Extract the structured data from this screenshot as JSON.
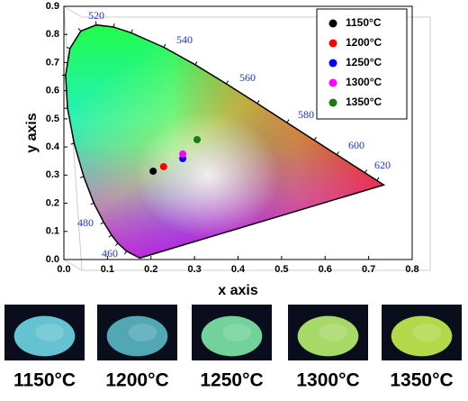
{
  "chart_data": {
    "type": "scatter",
    "xlabel": "x axis",
    "ylabel": "y axis",
    "xlim": [
      0,
      0.8
    ],
    "ylim": [
      0,
      0.9
    ],
    "xticks": [
      {
        "value": 0,
        "label": "0.0"
      },
      0.1,
      0.2,
      0.3,
      0.4,
      0.5,
      0.6,
      0.7,
      0.8
    ],
    "yticks": [
      {
        "value": 0,
        "label": "0.0"
      },
      0.1,
      0.2,
      0.3,
      0.4,
      0.5,
      0.6,
      0.7,
      0.8,
      0.9
    ],
    "wavelength_labels": [
      "520",
      "540",
      "560",
      "580",
      "600",
      "620",
      "480",
      "460"
    ],
    "legend": "upper right",
    "series": [
      {
        "name": "1150°C",
        "color": "#000000",
        "x": [
          0.205
        ],
        "values": [
          0.314
        ]
      },
      {
        "name": "1200°C",
        "color": "#ff0000",
        "x": [
          0.229
        ],
        "values": [
          0.33
        ]
      },
      {
        "name": "1250°C",
        "color": "#0000ff",
        "x": [
          0.273
        ],
        "values": [
          0.359
        ]
      },
      {
        "name": "1300°C",
        "color": "#ff00ff",
        "x": [
          0.273
        ],
        "values": [
          0.375
        ]
      },
      {
        "name": "1350°C",
        "color": "#1a7a1a",
        "x": [
          0.306
        ],
        "values": [
          0.426
        ]
      }
    ]
  },
  "samples": [
    {
      "label": "1150°C",
      "color": "#6fd6e6"
    },
    {
      "label": "1200°C",
      "color": "#5ab8c6"
    },
    {
      "label": "1250°C",
      "color": "#7ee8a8"
    },
    {
      "label": "1300°C",
      "color": "#b8f070"
    },
    {
      "label": "1350°C",
      "color": "#c4f050"
    }
  ]
}
